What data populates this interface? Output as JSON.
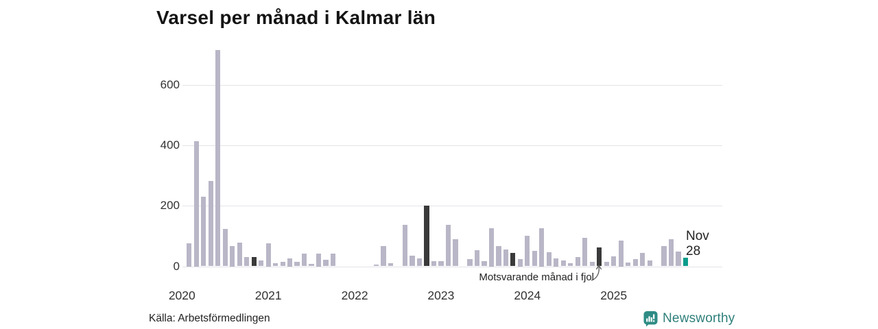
{
  "title": "Varsel per månad i Kalmar län",
  "source": "Källa: Arbetsförmedlingen",
  "branding": {
    "name": "Newsworthy"
  },
  "annotation": {
    "text": "Motsvarande månad i fjol",
    "target_month": "2024-11"
  },
  "latest_label": {
    "line1": "Nov",
    "line2": "28"
  },
  "colors": {
    "bar_default": "#b9b6c7",
    "bar_prior_november": "#3a3a3a",
    "bar_latest": "#0b9c8c",
    "gridline": "#e4e3e8",
    "text": "#222222",
    "brand_teal": "#2e8c84"
  },
  "chart_data": {
    "type": "bar",
    "title": "Varsel per månad i Kalmar län",
    "xlabel": "",
    "ylabel": "",
    "ylim": [
      0,
      730
    ],
    "y_ticks": [
      0,
      200,
      400,
      600
    ],
    "x_ticks": [
      "2020",
      "2021",
      "2022",
      "2023",
      "2024",
      "2025"
    ],
    "legend": "dark bars = November of earlier years (motsvarande månad i fjol); teal bar = latest month (Nov 2025)",
    "months": [
      {
        "month": "2020-01",
        "value": 0,
        "role": "normal"
      },
      {
        "month": "2020-02",
        "value": 77,
        "role": "normal"
      },
      {
        "month": "2020-03",
        "value": 415,
        "role": "normal"
      },
      {
        "month": "2020-04",
        "value": 230,
        "role": "normal"
      },
      {
        "month": "2020-05",
        "value": 282,
        "role": "normal"
      },
      {
        "month": "2020-06",
        "value": 715,
        "role": "normal"
      },
      {
        "month": "2020-07",
        "value": 124,
        "role": "normal"
      },
      {
        "month": "2020-08",
        "value": 67,
        "role": "normal"
      },
      {
        "month": "2020-09",
        "value": 79,
        "role": "normal"
      },
      {
        "month": "2020-10",
        "value": 31,
        "role": "normal"
      },
      {
        "month": "2020-11",
        "value": 30,
        "role": "nov-prior"
      },
      {
        "month": "2020-12",
        "value": 19,
        "role": "normal"
      },
      {
        "month": "2021-01",
        "value": 77,
        "role": "normal"
      },
      {
        "month": "2021-02",
        "value": 10,
        "role": "normal"
      },
      {
        "month": "2021-03",
        "value": 15,
        "role": "normal"
      },
      {
        "month": "2021-04",
        "value": 26,
        "role": "normal"
      },
      {
        "month": "2021-05",
        "value": 15,
        "role": "normal"
      },
      {
        "month": "2021-06",
        "value": 41,
        "role": "normal"
      },
      {
        "month": "2021-07",
        "value": 7,
        "role": "normal"
      },
      {
        "month": "2021-08",
        "value": 43,
        "role": "normal"
      },
      {
        "month": "2021-09",
        "value": 22,
        "role": "normal"
      },
      {
        "month": "2021-10",
        "value": 41,
        "role": "normal"
      },
      {
        "month": "2021-11",
        "value": 0,
        "role": "nov-prior"
      },
      {
        "month": "2021-12",
        "value": 0,
        "role": "normal"
      },
      {
        "month": "2022-01",
        "value": 0,
        "role": "normal"
      },
      {
        "month": "2022-02",
        "value": 0,
        "role": "normal"
      },
      {
        "month": "2022-03",
        "value": 0,
        "role": "normal"
      },
      {
        "month": "2022-04",
        "value": 5,
        "role": "normal"
      },
      {
        "month": "2022-05",
        "value": 66,
        "role": "normal"
      },
      {
        "month": "2022-06",
        "value": 10,
        "role": "normal"
      },
      {
        "month": "2022-07",
        "value": 0,
        "role": "normal"
      },
      {
        "month": "2022-08",
        "value": 138,
        "role": "normal"
      },
      {
        "month": "2022-09",
        "value": 36,
        "role": "normal"
      },
      {
        "month": "2022-10",
        "value": 27,
        "role": "normal"
      },
      {
        "month": "2022-11",
        "value": 200,
        "role": "nov-prior"
      },
      {
        "month": "2022-12",
        "value": 16,
        "role": "normal"
      },
      {
        "month": "2023-01",
        "value": 16,
        "role": "normal"
      },
      {
        "month": "2023-02",
        "value": 138,
        "role": "normal"
      },
      {
        "month": "2023-03",
        "value": 90,
        "role": "normal"
      },
      {
        "month": "2023-04",
        "value": 0,
        "role": "normal"
      },
      {
        "month": "2023-05",
        "value": 24,
        "role": "normal"
      },
      {
        "month": "2023-06",
        "value": 54,
        "role": "normal"
      },
      {
        "month": "2023-07",
        "value": 18,
        "role": "normal"
      },
      {
        "month": "2023-08",
        "value": 127,
        "role": "normal"
      },
      {
        "month": "2023-09",
        "value": 66,
        "role": "normal"
      },
      {
        "month": "2023-10",
        "value": 56,
        "role": "normal"
      },
      {
        "month": "2023-11",
        "value": 44,
        "role": "nov-prior"
      },
      {
        "month": "2023-12",
        "value": 25,
        "role": "normal"
      },
      {
        "month": "2024-01",
        "value": 100,
        "role": "normal"
      },
      {
        "month": "2024-02",
        "value": 50,
        "role": "normal"
      },
      {
        "month": "2024-03",
        "value": 127,
        "role": "normal"
      },
      {
        "month": "2024-04",
        "value": 47,
        "role": "normal"
      },
      {
        "month": "2024-05",
        "value": 26,
        "role": "normal"
      },
      {
        "month": "2024-06",
        "value": 19,
        "role": "normal"
      },
      {
        "month": "2024-07",
        "value": 10,
        "role": "normal"
      },
      {
        "month": "2024-08",
        "value": 30,
        "role": "normal"
      },
      {
        "month": "2024-09",
        "value": 95,
        "role": "normal"
      },
      {
        "month": "2024-10",
        "value": 15,
        "role": "normal"
      },
      {
        "month": "2024-11",
        "value": 63,
        "role": "nov-prior"
      },
      {
        "month": "2024-12",
        "value": 15,
        "role": "normal"
      },
      {
        "month": "2025-01",
        "value": 33,
        "role": "normal"
      },
      {
        "month": "2025-02",
        "value": 85,
        "role": "normal"
      },
      {
        "month": "2025-03",
        "value": 13,
        "role": "normal"
      },
      {
        "month": "2025-04",
        "value": 24,
        "role": "normal"
      },
      {
        "month": "2025-05",
        "value": 45,
        "role": "normal"
      },
      {
        "month": "2025-06",
        "value": 20,
        "role": "normal"
      },
      {
        "month": "2025-07",
        "value": 0,
        "role": "normal"
      },
      {
        "month": "2025-08",
        "value": 66,
        "role": "normal"
      },
      {
        "month": "2025-09",
        "value": 90,
        "role": "normal"
      },
      {
        "month": "2025-10",
        "value": 48,
        "role": "normal"
      },
      {
        "month": "2025-11",
        "value": 28,
        "role": "latest"
      }
    ]
  }
}
